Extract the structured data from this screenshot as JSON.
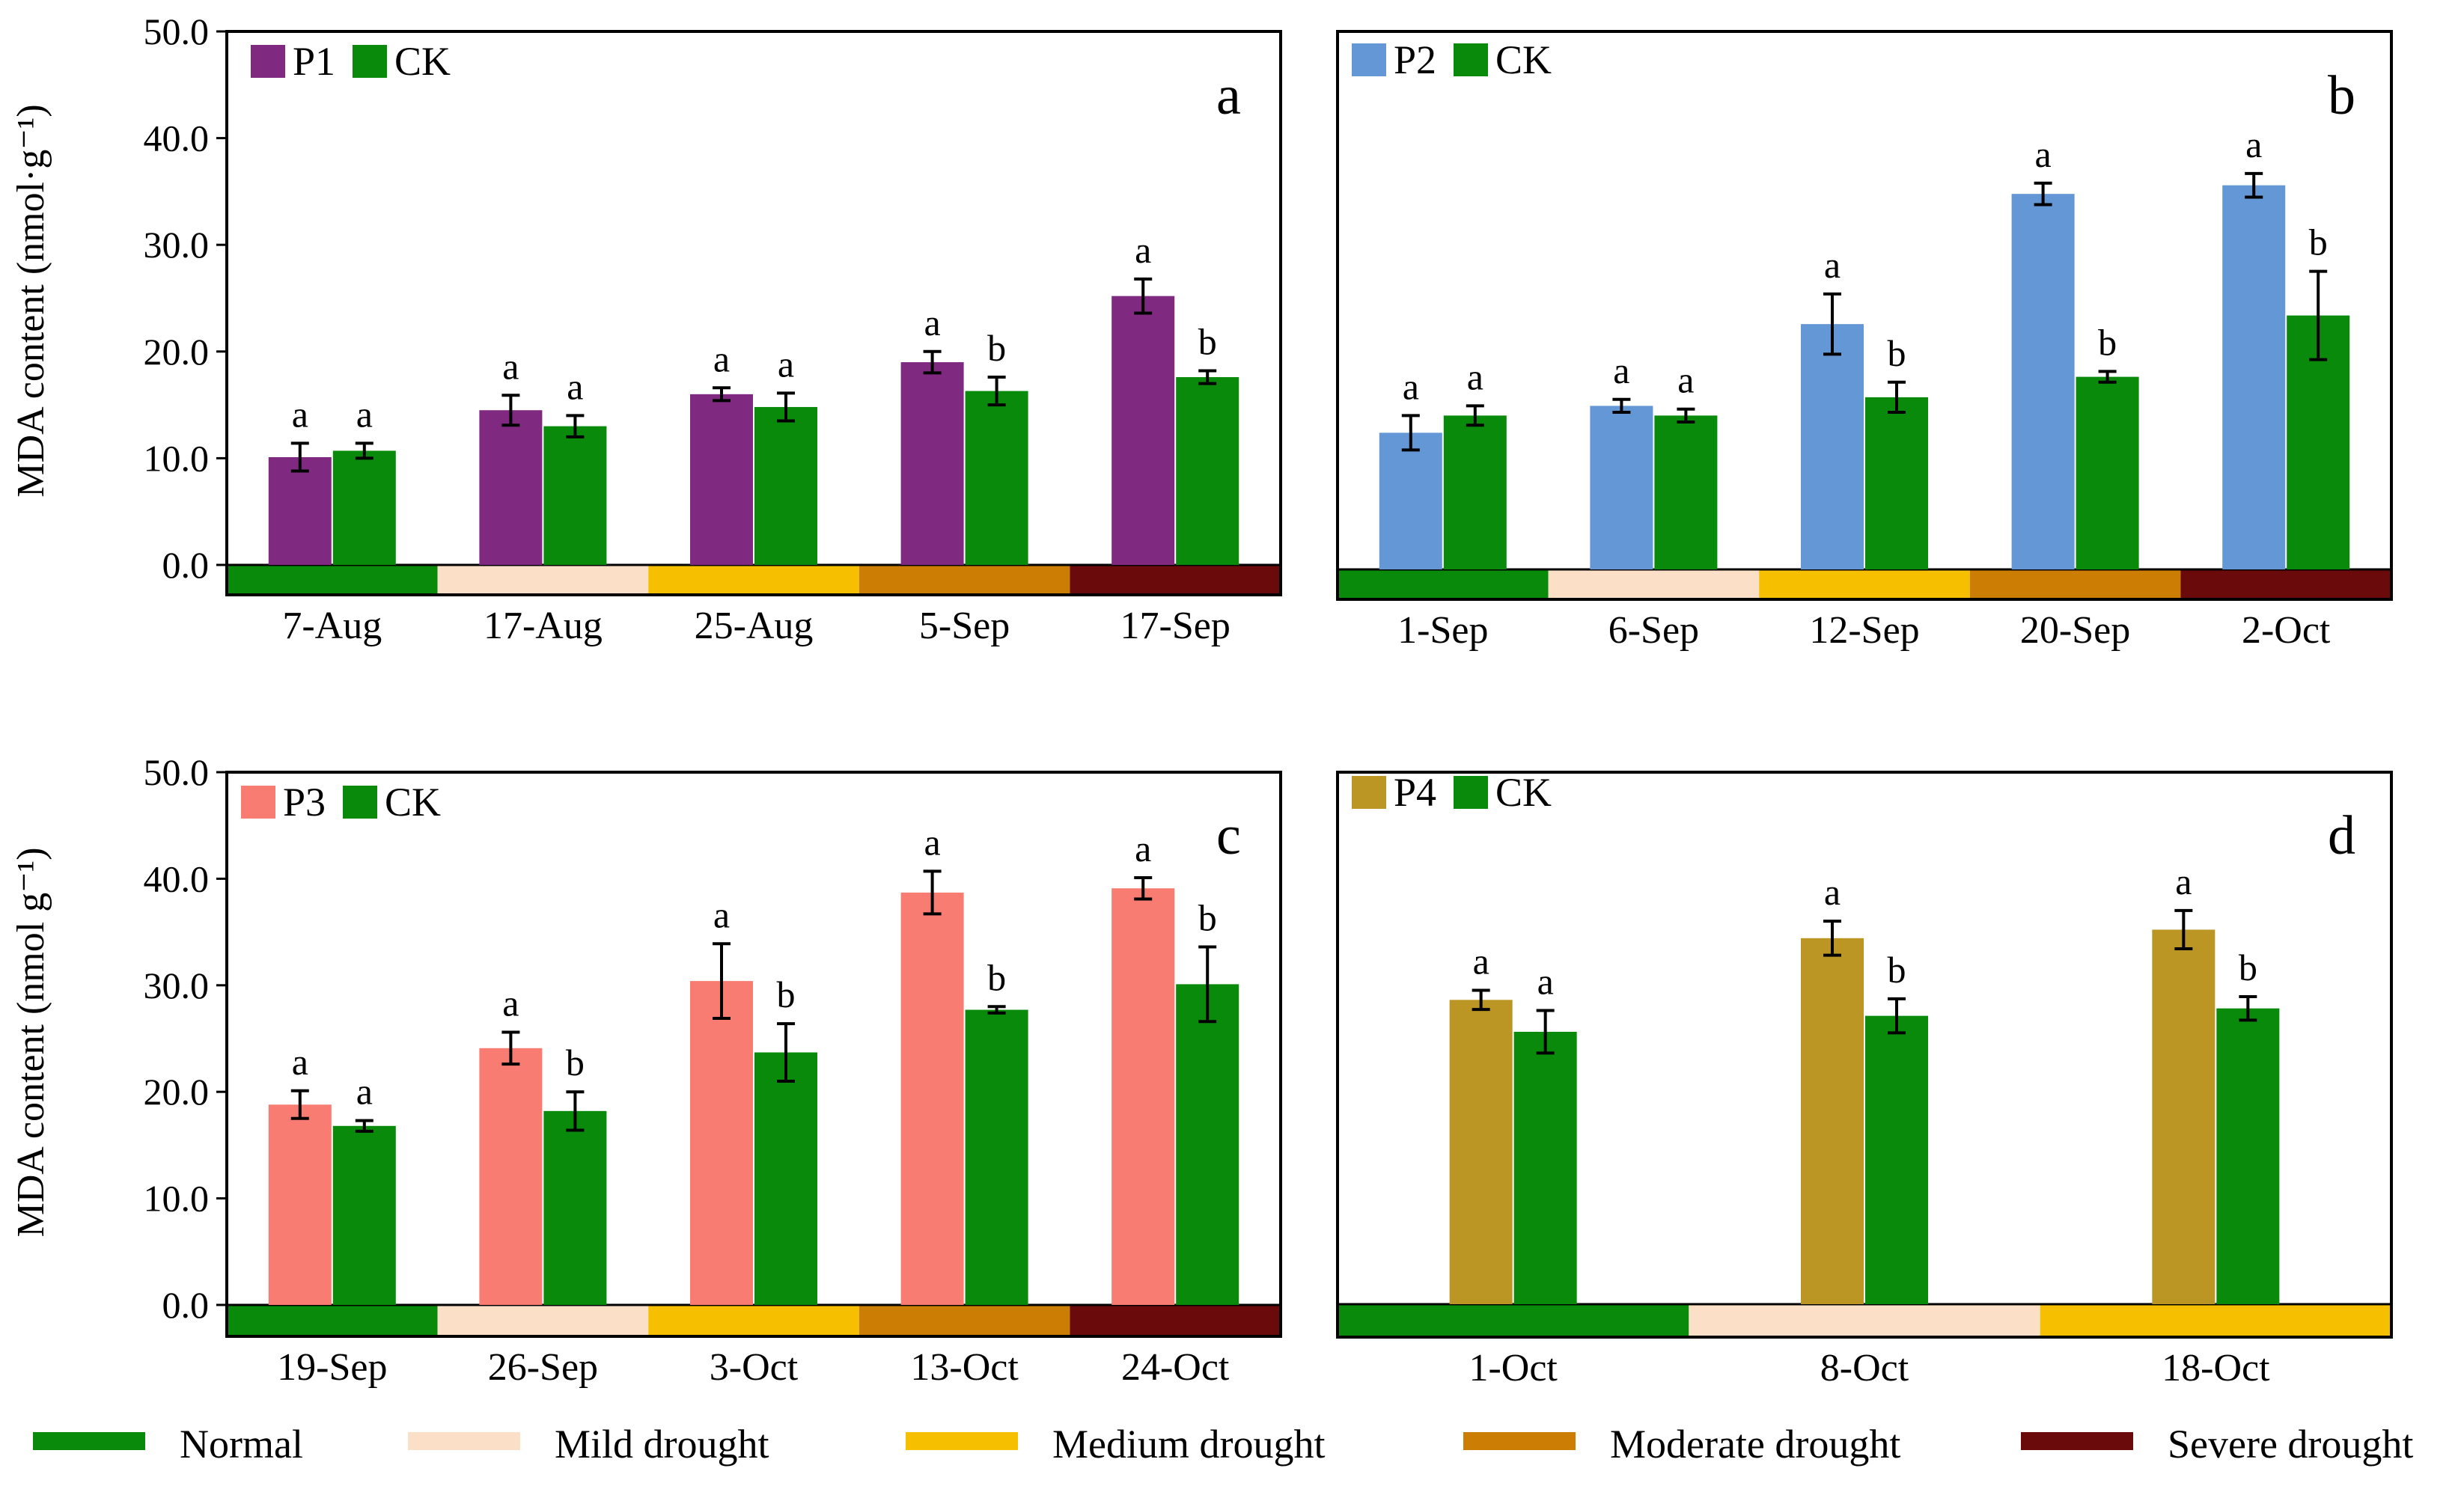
{
  "figure": {
    "y_label_a": "MDA content (nmol·g⁻¹)",
    "y_label_c": "MDA content (nmol g⁻¹)"
  },
  "colors": {
    "P1": "#7f2a80",
    "P2": "#6397d5",
    "P3": "#f87c72",
    "P4": "#bb9624",
    "CK": "#0a8a0a",
    "Normal": "#0a8a0a",
    "Mild drought": "#fbdfc6",
    "Medium drought": "#f6c000",
    "Moderate drought": "#cc7d04",
    "Severe drought": "#6b0a0a"
  },
  "drought_legend": [
    {
      "label": "Normal",
      "key": "Normal"
    },
    {
      "label": "Mild drought",
      "key": "Mild drought"
    },
    {
      "label": "Medium drought",
      "key": "Medium drought"
    },
    {
      "label": "Moderate drought",
      "key": "Moderate drought"
    },
    {
      "label": "Severe drought",
      "key": "Severe drought"
    }
  ],
  "chart_data": [
    {
      "type": "bar",
      "panel": "a",
      "ylabel": "MDA content (nmol·g⁻¹)",
      "ylim": [
        0,
        50
      ],
      "yticks": [
        "0.0",
        "10.0",
        "20.0",
        "30.0",
        "40.0",
        "50.0"
      ],
      "categories": [
        "7-Aug",
        "17-Aug",
        "25-Aug",
        "5-Sep",
        "17-Sep"
      ],
      "drought_stage": [
        "Normal",
        "Mild drought",
        "Medium drought",
        "Moderate drought",
        "Severe drought"
      ],
      "series": [
        {
          "name": "P1",
          "values": [
            10.1,
            14.5,
            16.0,
            19.0,
            25.2
          ],
          "errors": [
            1.3,
            1.4,
            0.6,
            1.0,
            1.6
          ],
          "letters": [
            "a",
            "a",
            "a",
            "a",
            "a"
          ]
        },
        {
          "name": "CK",
          "values": [
            10.7,
            13.0,
            14.8,
            16.3,
            17.6
          ],
          "errors": [
            0.7,
            1.0,
            1.3,
            1.3,
            0.6
          ],
          "letters": [
            "a",
            "a",
            "a",
            "b",
            "b"
          ]
        }
      ]
    },
    {
      "type": "bar",
      "panel": "b",
      "ylim": [
        0,
        50
      ],
      "categories": [
        "1-Sep",
        "6-Sep",
        "12-Sep",
        "20-Sep",
        "2-Oct"
      ],
      "drought_stage": [
        "Normal",
        "Mild drought",
        "Medium drought",
        "Moderate drought",
        "Severe drought"
      ],
      "series": [
        {
          "name": "P2",
          "values": [
            12.7,
            15.2,
            22.8,
            34.9,
            35.7
          ],
          "errors": [
            1.6,
            0.6,
            2.8,
            1.0,
            1.1
          ],
          "letters": [
            "a",
            "a",
            "a",
            "a",
            "a"
          ]
        },
        {
          "name": "CK",
          "values": [
            14.3,
            14.3,
            16.0,
            17.9,
            23.6
          ],
          "errors": [
            0.9,
            0.6,
            1.4,
            0.5,
            4.1
          ],
          "letters": [
            "a",
            "a",
            "b",
            "b",
            "b"
          ]
        }
      ]
    },
    {
      "type": "bar",
      "panel": "c",
      "ylabel": "MDA content (nmol g⁻¹)",
      "ylim": [
        0,
        50
      ],
      "yticks": [
        "0.0",
        "10.0",
        "20.0",
        "30.0",
        "40.0",
        "50.0"
      ],
      "categories": [
        "19-Sep",
        "26-Sep",
        "3-Oct",
        "13-Oct",
        "24-Oct"
      ],
      "drought_stage": [
        "Normal",
        "Mild drought",
        "Medium drought",
        "Moderate drought",
        "Severe drought"
      ],
      "series": [
        {
          "name": "P3",
          "values": [
            18.8,
            24.1,
            30.4,
            38.7,
            39.1
          ],
          "errors": [
            1.3,
            1.5,
            3.5,
            2.0,
            1.0
          ],
          "letters": [
            "a",
            "a",
            "a",
            "a",
            "a"
          ]
        },
        {
          "name": "CK",
          "values": [
            16.8,
            18.2,
            23.7,
            27.7,
            30.1
          ],
          "errors": [
            0.5,
            1.8,
            2.7,
            0.3,
            3.5
          ],
          "letters": [
            "a",
            "b",
            "b",
            "b",
            "b"
          ]
        }
      ]
    },
    {
      "type": "bar",
      "panel": "d",
      "ylim": [
        0,
        50
      ],
      "categories": [
        "1-Oct",
        "8-Oct",
        "18-Oct"
      ],
      "drought_stage": [
        "Normal",
        "Mild drought",
        "Medium drought"
      ],
      "series": [
        {
          "name": "P4",
          "values": [
            28.6,
            34.4,
            35.2
          ],
          "errors": [
            0.9,
            1.6,
            1.8
          ],
          "letters": [
            "a",
            "a",
            "a"
          ]
        },
        {
          "name": "CK",
          "values": [
            25.6,
            27.1,
            27.8
          ],
          "errors": [
            2.0,
            1.6,
            1.1
          ],
          "letters": [
            "a",
            "b",
            "b"
          ]
        }
      ]
    }
  ]
}
